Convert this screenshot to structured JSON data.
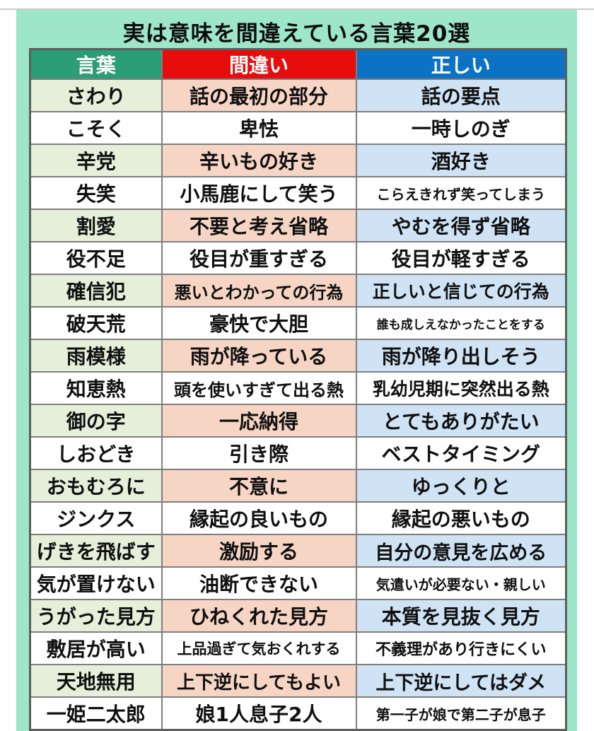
{
  "title": "実は意味を間違えている言葉20選",
  "colors": {
    "panel_background": "#9de6ca",
    "header_word_bg": "#2b9d77",
    "header_wrong_bg": "#e80d0d",
    "header_correct_bg": "#0b72c4",
    "row_tint_word": "#e6efda",
    "row_tint_wrong": "#f6d5c5",
    "row_tint_correct": "#cfe3f5",
    "header_text": "#ffffff",
    "cell_text": "#101010"
  },
  "chart_data": {
    "type": "table",
    "title": "実は意味を間違えている言葉20選",
    "columns": [
      "言葉",
      "間違い",
      "正しい"
    ],
    "rows": [
      [
        "さわり",
        "話の最初の部分",
        "話の要点"
      ],
      [
        "こそく",
        "卑怯",
        "一時しのぎ"
      ],
      [
        "辛党",
        "辛いもの好き",
        "酒好き"
      ],
      [
        "失笑",
        "小馬鹿にして笑う",
        "こらえきれず笑ってしまう"
      ],
      [
        "割愛",
        "不要と考え省略",
        "やむを得ず省略"
      ],
      [
        "役不足",
        "役目が重すぎる",
        "役目が軽すぎる"
      ],
      [
        "確信犯",
        "悪いとわかっての行為",
        "正しいと信じての行為"
      ],
      [
        "破天荒",
        "豪快で大胆",
        "誰も成しえなかったことをする"
      ],
      [
        "雨模様",
        "雨が降っている",
        "雨が降り出しそう"
      ],
      [
        "知恵熱",
        "頭を使いすぎて出る熱",
        "乳幼児期に突然出る熱"
      ],
      [
        "御の字",
        "一応納得",
        "とてもありがたい"
      ],
      [
        "しおどき",
        "引き際",
        "ベストタイミング"
      ],
      [
        "おもむろに",
        "不意に",
        "ゆっくりと"
      ],
      [
        "ジンクス",
        "縁起の良いもの",
        "縁起の悪いもの"
      ],
      [
        "げきを飛ばす",
        "激励する",
        "自分の意見を広める"
      ],
      [
        "気が置けない",
        "油断できない",
        "気遣いが必要ない・親しい"
      ],
      [
        "うがった見方",
        "ひねくれた見方",
        "本質を見抜く見方"
      ],
      [
        "敷居が高い",
        "上品過ぎて気おくれする",
        "不義理があり行きにくい"
      ],
      [
        "天地無用",
        "上下逆にしてもよい",
        "上下逆にしてはダメ"
      ],
      [
        "一姫二太郎",
        "娘1人息子2人",
        "第一子が娘で第二子が息子"
      ]
    ]
  }
}
